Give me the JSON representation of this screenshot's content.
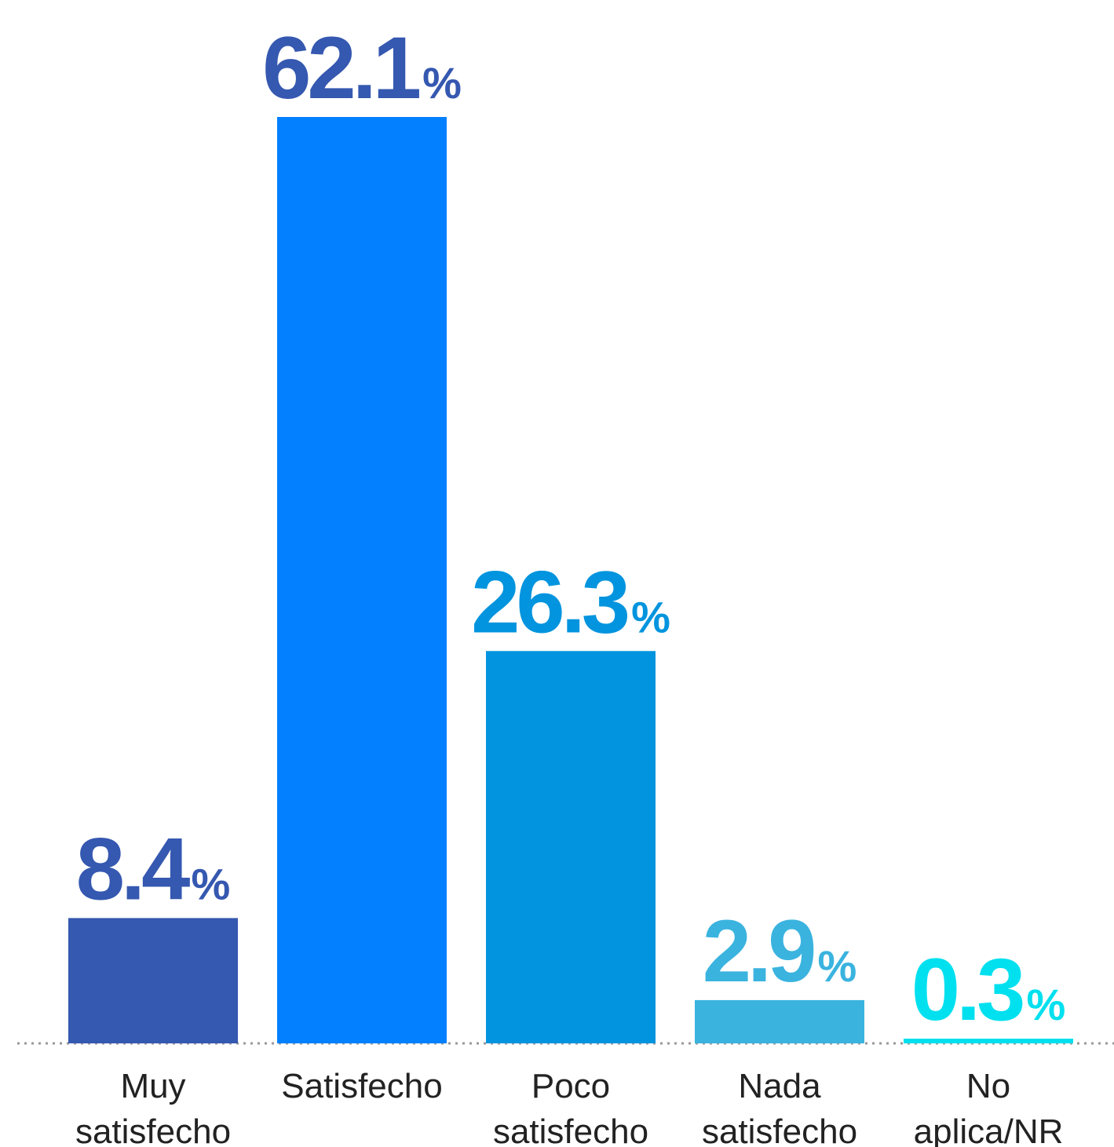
{
  "chart_data": {
    "type": "bar",
    "title": "",
    "xlabel": "",
    "ylabel": "",
    "ylim": [
      0,
      62.1
    ],
    "grid": false,
    "legend": "none",
    "unit_suffix": "%",
    "categories": [
      [
        "Muy",
        "satisfecho"
      ],
      [
        "Satisfecho"
      ],
      [
        "Poco",
        "satisfecho"
      ],
      [
        "Nada",
        "satisfecho"
      ],
      [
        "No",
        "aplica/NR"
      ]
    ],
    "values": [
      8.4,
      62.1,
      26.3,
      2.9,
      0.3
    ],
    "value_labels": [
      "8.4",
      "62.1",
      "26.3",
      "2.9",
      "0.3"
    ],
    "bar_colors": [
      "#3558b0",
      "#0280ff",
      "#0294de",
      "#3ab3df",
      "#00e0ef"
    ],
    "label_colors": [
      "#3558b0",
      "#3558b0",
      "#0294de",
      "#3ab3df",
      "#00e0ef"
    ],
    "baseline_color": "#999999"
  }
}
